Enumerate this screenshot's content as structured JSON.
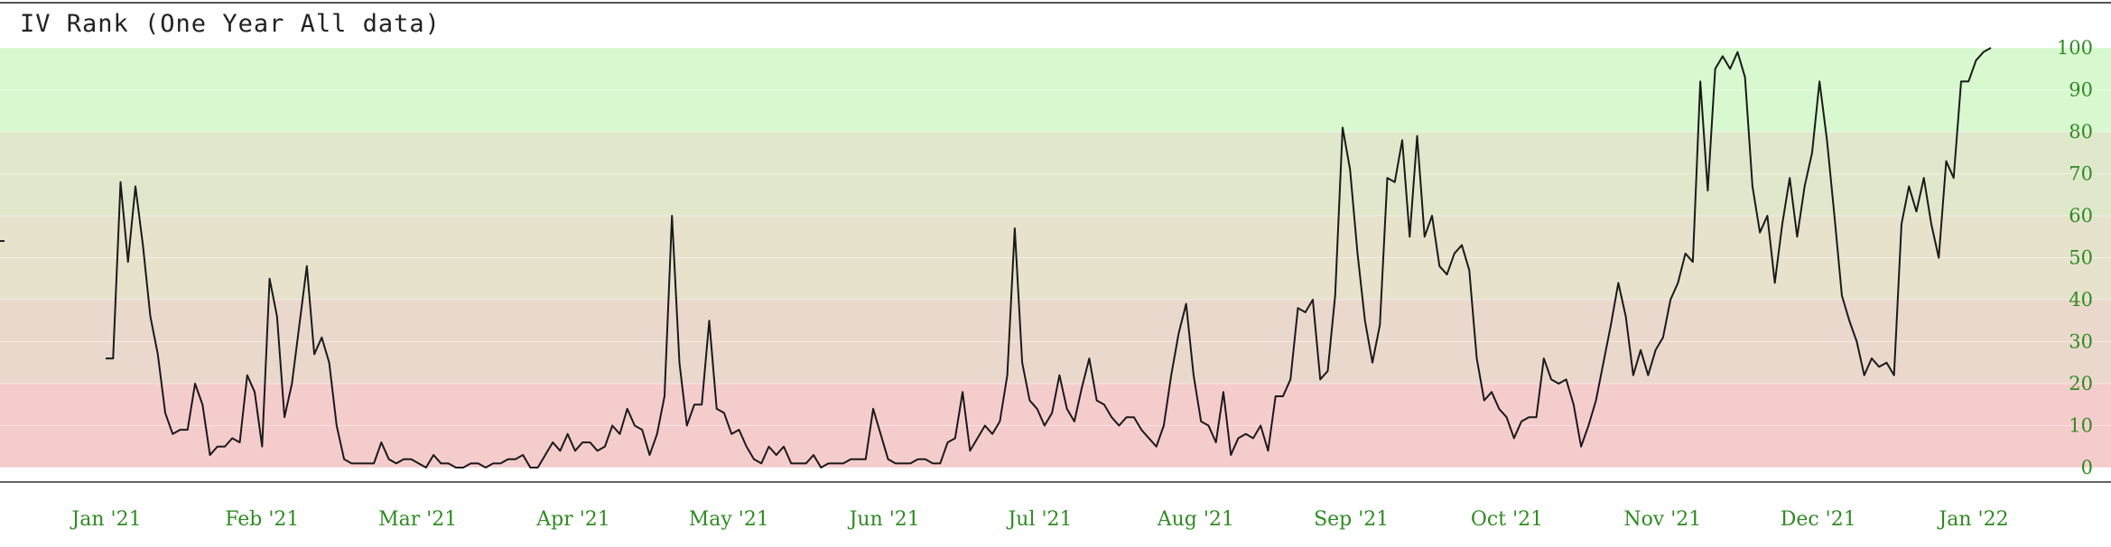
{
  "title": "IV Rank (One Year All data)",
  "chart_data": {
    "type": "line",
    "title": "IV Rank (One Year All data)",
    "ylim": [
      0,
      100
    ],
    "y_ticks": [
      "0",
      "10",
      "20",
      "30",
      "40",
      "50",
      "60",
      "70",
      "80",
      "90",
      "100"
    ],
    "x_tick_labels": [
      "Jan '21",
      "Feb '21",
      "Mar '21",
      "Apr '21",
      "May '21",
      "Jun '21",
      "Jul '21",
      "Aug '21",
      "Sep '21",
      "Oct '21",
      "Nov '21",
      "Dec '21",
      "Jan '22"
    ],
    "bands": [
      {
        "from": 0,
        "to": 20,
        "color": "#f5cccc"
      },
      {
        "from": 20,
        "to": 40,
        "color": "#ebd8cc"
      },
      {
        "from": 40,
        "to": 60,
        "color": "#e6e2cc"
      },
      {
        "from": 60,
        "to": 80,
        "color": "#e0e8cc"
      },
      {
        "from": 80,
        "to": 100,
        "color": "#d8f8d0"
      }
    ],
    "colors": {
      "line": "#1a1a1a",
      "ticks": "#2e8b22"
    },
    "series": [
      {
        "values": [
          26,
          26,
          68,
          49,
          67,
          53,
          36,
          27,
          13,
          8,
          9,
          9,
          20,
          15,
          3,
          5,
          5,
          7,
          6,
          22,
          18,
          5,
          45,
          36,
          12,
          20,
          34,
          48,
          27,
          31,
          25,
          10,
          2,
          1,
          1,
          1,
          1,
          6,
          2,
          1,
          2,
          2,
          1,
          0,
          3,
          1,
          1,
          0,
          0,
          1,
          1,
          0,
          1,
          1,
          2,
          2,
          3,
          0,
          0,
          3,
          6,
          4,
          8,
          4,
          6,
          6,
          4,
          5,
          10,
          8,
          14,
          10,
          9,
          3,
          8,
          17,
          60,
          25,
          10,
          15,
          15,
          35,
          14,
          13,
          8,
          9,
          5,
          2,
          1,
          5,
          3,
          5,
          1,
          1,
          1,
          3,
          0,
          1,
          1,
          1,
          2,
          2,
          2,
          14,
          8,
          2,
          1,
          1,
          1,
          2,
          2,
          1,
          1,
          6,
          7,
          18,
          4,
          7,
          10,
          8,
          11,
          22,
          57,
          25,
          16,
          14,
          10,
          13,
          22,
          14,
          11,
          19,
          26,
          16,
          15,
          12,
          10,
          12,
          12,
          9,
          7,
          5,
          10,
          22,
          32,
          39,
          22,
          11,
          10,
          6,
          18,
          3,
          7,
          8,
          7,
          10,
          4,
          17,
          17,
          21,
          38,
          37,
          40,
          21,
          23,
          41,
          81,
          71,
          51,
          35,
          25,
          34,
          69,
          68,
          78,
          55,
          79,
          55,
          60,
          48,
          46,
          51,
          53,
          47,
          26,
          16,
          18,
          14,
          12,
          7,
          11,
          12,
          12,
          26,
          21,
          20,
          21,
          15,
          5,
          10,
          16,
          25,
          34,
          44,
          36,
          22,
          28,
          22,
          28,
          31,
          40,
          44,
          51,
          49,
          92,
          66,
          95,
          98,
          95,
          99,
          93,
          67,
          56,
          60,
          44,
          58,
          69,
          55,
          67,
          75,
          92,
          78,
          60,
          41,
          35,
          30,
          22,
          26,
          24,
          25,
          22,
          58,
          67,
          61,
          69,
          58,
          50,
          73,
          69,
          92,
          92,
          97,
          99,
          100
        ]
      }
    ]
  }
}
